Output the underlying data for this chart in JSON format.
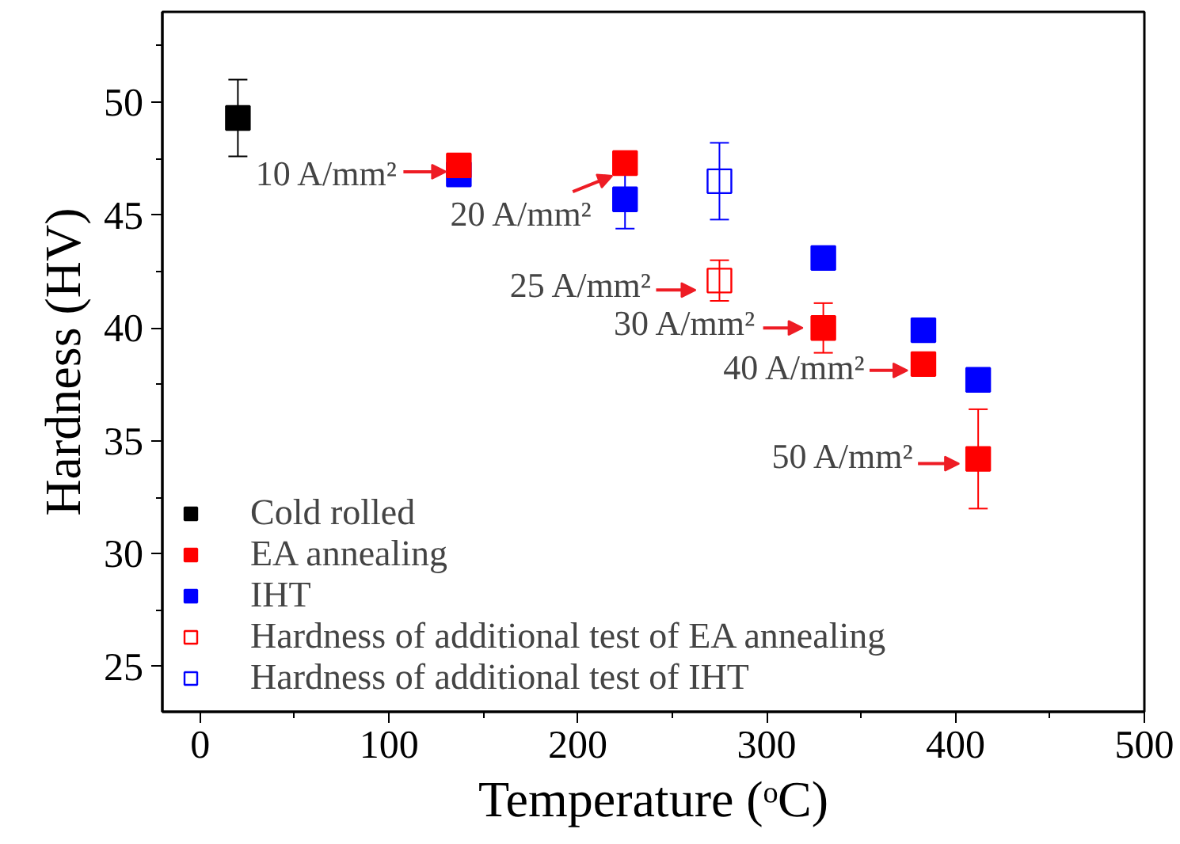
{
  "chart_data": {
    "type": "scatter",
    "xlabel": "Temperature (ᵒC)",
    "ylabel": "Hardness (HV)",
    "xlim": [
      -20,
      500
    ],
    "xticks": [
      0,
      100,
      200,
      300,
      400,
      500
    ],
    "ylim": [
      23,
      54
    ],
    "yticks": [
      25,
      30,
      35,
      40,
      45,
      50
    ],
    "grid": false,
    "legend": "bottom left",
    "marker": "square",
    "series": [
      {
        "name": "Cold rolled",
        "color": "#000000",
        "x": [
          20
        ],
        "values": [
          49.3
        ],
        "errors": [
          1.7
        ]
      },
      {
        "name": "EA annealing",
        "color": "#ff0000",
        "x": [
          137,
          225,
          330,
          383,
          412
        ],
        "values": [
          47.2,
          47.3,
          40.0,
          38.4,
          34.2
        ],
        "errors": [
          0.5,
          0.4,
          1.1,
          0.2,
          2.2
        ]
      },
      {
        "name": "IHT",
        "color": "#0000ff",
        "x": [
          137,
          225,
          330,
          383,
          412
        ],
        "values": [
          46.8,
          45.7,
          43.1,
          39.9,
          37.7
        ],
        "errors": [
          0.2,
          1.3,
          0.2,
          0.3,
          0.5
        ]
      },
      {
        "name": "Hardness of additional test of EA annealing",
        "color": "#ff0000",
        "marker": "square_open",
        "x": [
          275
        ],
        "values": [
          42.1
        ],
        "errors": [
          0.9
        ]
      },
      {
        "name": "Hardness of additional test of IHT",
        "color": "#0000ff",
        "marker": "square_open",
        "x": [
          275
        ],
        "values": [
          46.5
        ],
        "errors": [
          1.7
        ]
      }
    ],
    "annotations": [
      {
        "text": "10 A/mm²",
        "x": 137,
        "y": 47.2
      },
      {
        "text": "20 A/mm²",
        "x": 225,
        "y": 47.3
      },
      {
        "text": "25 A/mm²",
        "x": 275,
        "y": 42.1
      },
      {
        "text": "30 A/mm²",
        "x": 330,
        "y": 40.0
      },
      {
        "text": "40 A/mm²",
        "x": 383,
        "y": 38.4
      },
      {
        "text": "50 A/mm²",
        "x": 412,
        "y": 34.2
      }
    ]
  }
}
